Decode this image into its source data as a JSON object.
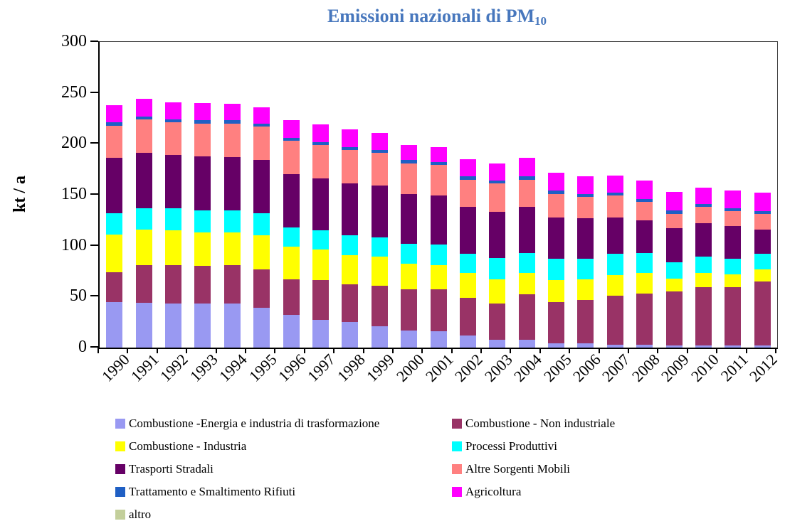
{
  "title": {
    "text": "Emissioni nazionali di PM",
    "subscript": "10",
    "color": "#4777BD"
  },
  "y_axis": {
    "label": "kt / a",
    "ticks": [
      0,
      50,
      100,
      150,
      200,
      250,
      300
    ],
    "max": 300
  },
  "chart_data": {
    "type": "bar",
    "stacked": true,
    "title": "Emissioni nazionali di PM10",
    "ylabel": "kt / a",
    "ylim": [
      0,
      300
    ],
    "y_tick_step": 50,
    "grid": false,
    "legend_position": "bottom",
    "categories": [
      "1990",
      "1991",
      "1992",
      "1993",
      "1994",
      "1995",
      "1996",
      "1997",
      "1998",
      "1999",
      "2000",
      "2001",
      "2002",
      "2003",
      "2004",
      "2005",
      "2006",
      "2007",
      "2008",
      "2009",
      "2010",
      "2011",
      "2012"
    ],
    "series": [
      {
        "name": "Combustione -Energia e industria di trasformazione",
        "color": "#9999F2",
        "values": [
          45,
          44,
          43,
          43,
          43,
          39,
          32,
          27,
          25,
          21,
          17,
          16,
          12,
          8,
          8,
          4,
          4,
          3,
          3,
          2,
          2,
          2,
          2
        ]
      },
      {
        "name": "Combustione - Non industriale",
        "color": "#993366",
        "values": [
          29,
          37,
          38,
          37,
          38,
          38,
          35,
          39,
          37,
          40,
          40,
          41,
          37,
          35,
          44,
          41,
          43,
          48,
          50,
          53,
          57,
          57,
          63
        ]
      },
      {
        "name": "Combustione - Industria",
        "color": "#FFFF00",
        "values": [
          37,
          35,
          34,
          33,
          32,
          33,
          32,
          30,
          29,
          28,
          25,
          24,
          24,
          24,
          21,
          21,
          20,
          20,
          20,
          13,
          14,
          13,
          12
        ]
      },
      {
        "name": "Processi Produttivi",
        "color": "#00FFFF",
        "values": [
          21,
          21,
          22,
          22,
          22,
          22,
          19,
          19,
          19,
          19,
          20,
          20,
          19,
          21,
          20,
          21,
          20,
          21,
          20,
          16,
          16,
          15,
          15
        ]
      },
      {
        "name": "Trasporti Stradali",
        "color": "#660066",
        "values": [
          54,
          54,
          52,
          53,
          52,
          52,
          52,
          51,
          51,
          51,
          49,
          48,
          46,
          45,
          45,
          41,
          40,
          36,
          32,
          33,
          33,
          32,
          24
        ]
      },
      {
        "name": "Altre Sorgenti Mobili",
        "color": "#FF8080",
        "values": [
          32,
          33,
          32,
          32,
          33,
          33,
          33,
          33,
          33,
          32,
          30,
          30,
          27,
          28,
          27,
          23,
          21,
          21,
          18,
          14,
          16,
          15,
          15
        ]
      },
      {
        "name": "Trattamento e Smaltimento Rifiuti",
        "color": "#1F5FC4",
        "values": [
          3,
          3,
          3,
          3,
          3,
          3,
          3,
          3,
          3,
          3,
          3,
          3,
          3,
          3,
          3,
          3,
          3,
          3,
          3,
          4,
          3,
          3,
          3
        ]
      },
      {
        "name": "Agricoltura",
        "color": "#FF00FF",
        "values": [
          17,
          17,
          17,
          17,
          16,
          16,
          17,
          17,
          17,
          17,
          15,
          15,
          17,
          17,
          18,
          18,
          17,
          17,
          18,
          18,
          16,
          17,
          18
        ]
      },
      {
        "name": "altro",
        "color": "#C3CF9B",
        "values": [
          0,
          0,
          0,
          0,
          0,
          0,
          0,
          0,
          0,
          0,
          0,
          0,
          0,
          0,
          0,
          0,
          0,
          0,
          0,
          0,
          0,
          0,
          0
        ]
      }
    ]
  }
}
